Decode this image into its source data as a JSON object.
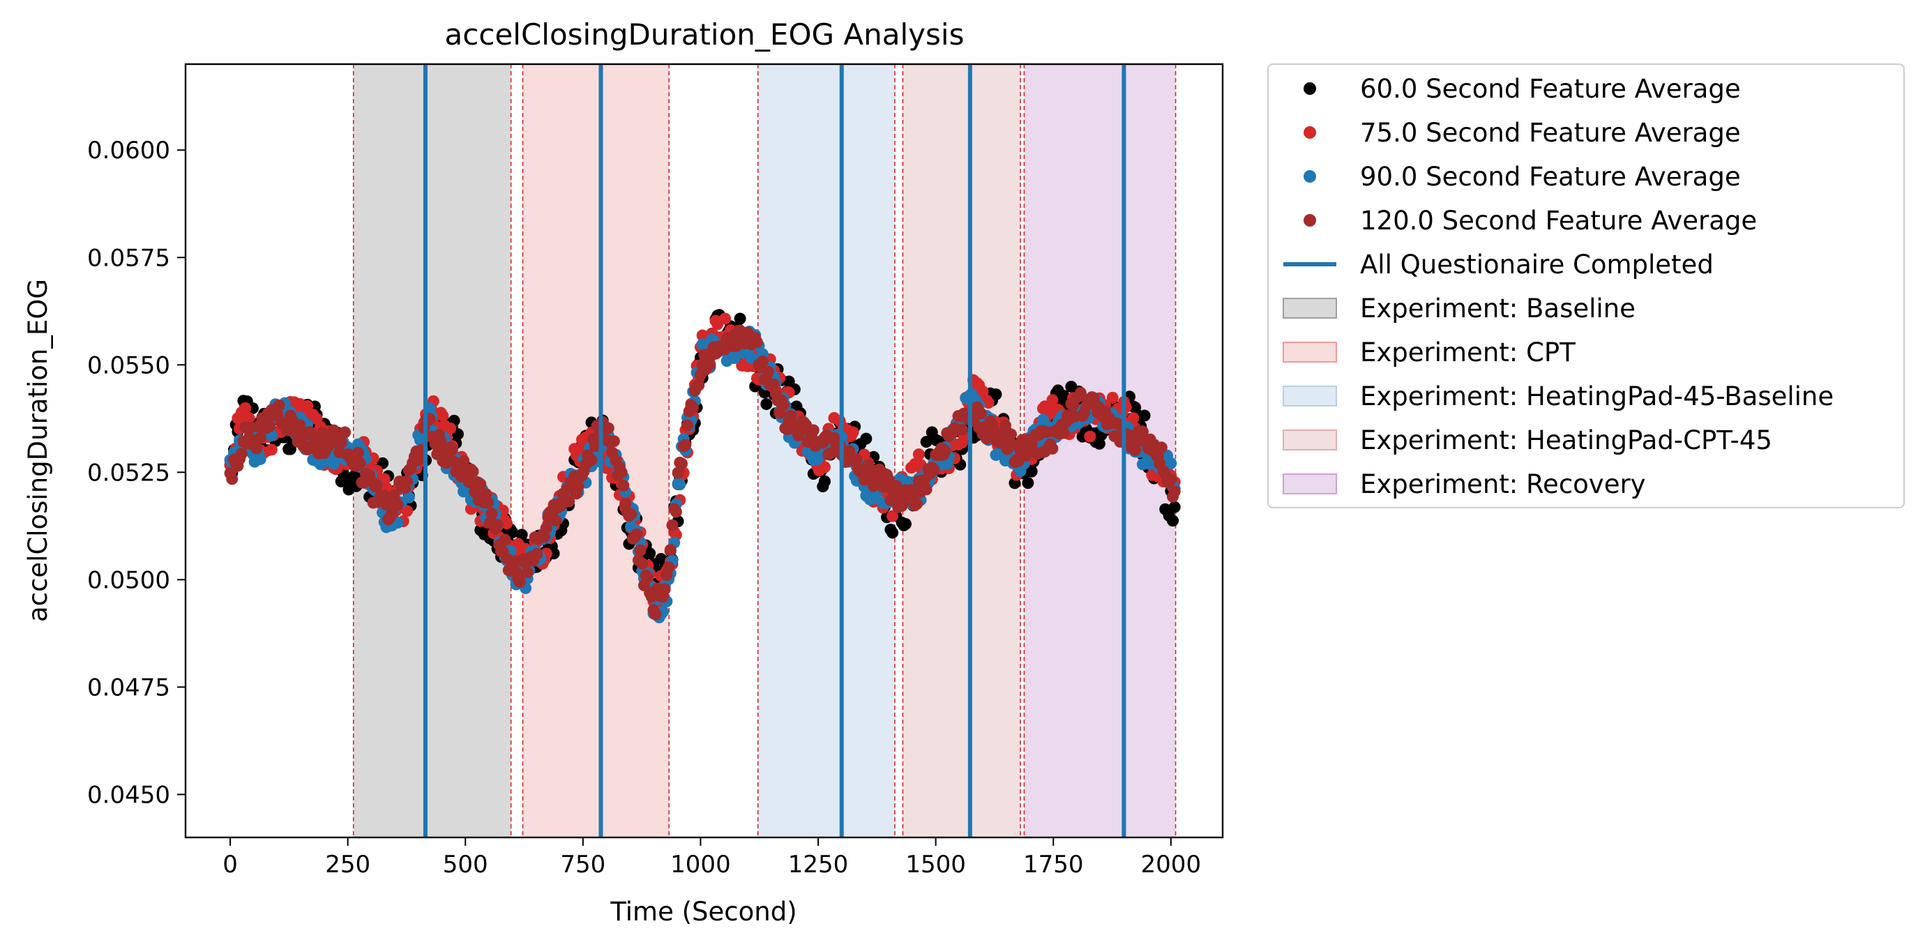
{
  "chart_data": {
    "type": "scatter",
    "title": "accelClosingDuration_EOG Analysis",
    "xlabel": "Time (Second)",
    "ylabel": "accelClosingDuration_EOG",
    "xlim": [
      -95,
      2110
    ],
    "ylim": [
      0.044,
      0.062
    ],
    "xticks": [
      0,
      250,
      500,
      750,
      1000,
      1250,
      1500,
      1750,
      2000
    ],
    "xtick_labels": [
      "0",
      "250",
      "500",
      "750",
      "1000",
      "1250",
      "1500",
      "1750",
      "2000"
    ],
    "yticks": [
      0.045,
      0.0475,
      0.05,
      0.0525,
      0.055,
      0.0575,
      0.06
    ],
    "ytick_labels": [
      "0.0450",
      "0.0475",
      "0.0500",
      "0.0525",
      "0.0550",
      "0.0575",
      "0.0600"
    ],
    "grid": false,
    "legend_position": "outside-right",
    "colors": {
      "s60": "#000000",
      "s75": "#d62728",
      "s90": "#1f77b4",
      "s120": "#a52a2a",
      "questionnaire": "#1f77b4"
    },
    "trend_knots": {
      "x": [
        0,
        30,
        60,
        100,
        150,
        200,
        250,
        300,
        340,
        380,
        420,
        450,
        500,
        550,
        600,
        620,
        650,
        700,
        750,
        790,
        820,
        850,
        880,
        900,
        930,
        960,
        1000,
        1050,
        1100,
        1150,
        1200,
        1250,
        1300,
        1350,
        1400,
        1430,
        1460,
        1500,
        1550,
        1575,
        1600,
        1650,
        1670,
        1700,
        1750,
        1800,
        1850,
        1900,
        1950,
        1980,
        2010
      ],
      "y": [
        0.0525,
        0.0535,
        0.0533,
        0.0538,
        0.0535,
        0.0532,
        0.053,
        0.0523,
        0.0516,
        0.0522,
        0.0536,
        0.0532,
        0.0525,
        0.0515,
        0.0505,
        0.0503,
        0.0507,
        0.0516,
        0.0527,
        0.0535,
        0.0527,
        0.0515,
        0.0503,
        0.0495,
        0.05,
        0.0528,
        0.055,
        0.0557,
        0.0556,
        0.0545,
        0.0536,
        0.053,
        0.0532,
        0.0525,
        0.052,
        0.0518,
        0.0522,
        0.0528,
        0.0535,
        0.054,
        0.0537,
        0.0533,
        0.0528,
        0.053,
        0.0535,
        0.054,
        0.0538,
        0.0535,
        0.0532,
        0.0527,
        0.052
      ]
    },
    "series": [
      {
        "name": "60.0 Second Feature Average",
        "color_key": "s60",
        "spread": 0.00055,
        "offset": 0.0
      },
      {
        "name": "75.0 Second Feature Average",
        "color_key": "s75",
        "spread": 0.00045,
        "offset": 5e-05
      },
      {
        "name": "90.0 Second Feature Average",
        "color_key": "s90",
        "spread": 0.00035,
        "offset": -5e-05
      },
      {
        "name": "120.0 Second Feature Average",
        "color_key": "s120",
        "spread": 0.00028,
        "offset": 0.0
      }
    ],
    "questionnaire_lines": {
      "name": "All Questionaire Completed",
      "x": [
        415,
        788,
        1300,
        1573,
        1900
      ]
    },
    "experiment_spans": [
      {
        "name": "Experiment: Baseline",
        "start": 262,
        "end": 597,
        "color": "#a0a0a0",
        "opacity": 0.4
      },
      {
        "name": "Experiment: CPT",
        "start": 622,
        "end": 933,
        "color": "#ef9a9a",
        "opacity": 0.35
      },
      {
        "name": "Experiment: HeatingPad-45-Baseline",
        "start": 1122,
        "end": 1413,
        "color": "#b7d0e8",
        "opacity": 0.45
      },
      {
        "name": "Experiment: HeatingPad-CPT-45",
        "start": 1430,
        "end": 1680,
        "color": "#deb0b0",
        "opacity": 0.4
      },
      {
        "name": "Experiment: Recovery",
        "start": 1688,
        "end": 2010,
        "color": "#cda0d4",
        "opacity": 0.4
      }
    ]
  }
}
